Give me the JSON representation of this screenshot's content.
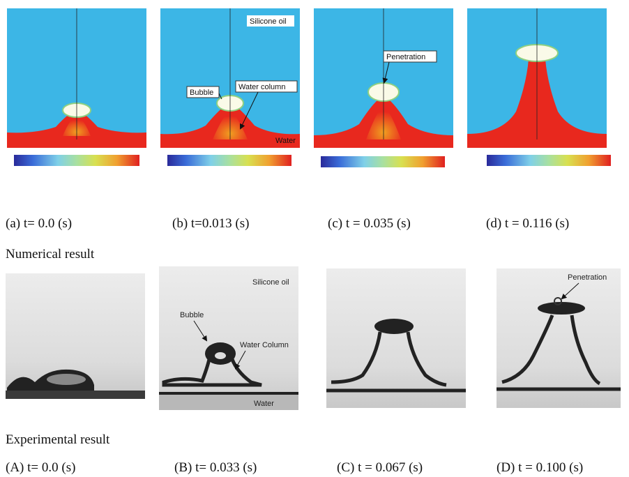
{
  "numerical": {
    "title": "Numerical result",
    "panels": [
      {
        "caption": "(a) t= 0.0 (s)"
      },
      {
        "caption": "(b) t=0.013 (s)",
        "annotations": [
          "Silicone oil",
          "Bubble",
          "Water column",
          "Water"
        ]
      },
      {
        "caption": "(c) t = 0.035 (s)",
        "annotations": [
          "Penetration"
        ]
      },
      {
        "caption": "(d) t = 0.116 (s)"
      }
    ]
  },
  "experimental": {
    "title": "Experimental result",
    "panels": [
      {
        "caption": "(A) t= 0.0 (s)"
      },
      {
        "caption": "(B) t= 0.033 (s)",
        "annotations": [
          "Silicone oil",
          "Bubble",
          "Water Column",
          "Water"
        ]
      },
      {
        "caption": "(C) t = 0.067 (s)"
      },
      {
        "caption": "(D) t = 0.100 (s)",
        "annotations": [
          "Penetration"
        ]
      }
    ]
  }
}
